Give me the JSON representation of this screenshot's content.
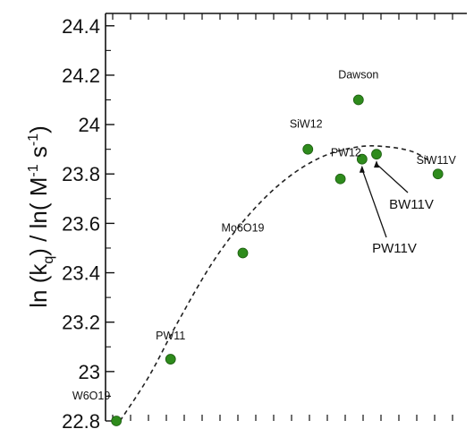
{
  "chart_data": {
    "type": "scatter",
    "title": "",
    "xlabel": "",
    "ylabel": {
      "text_parts": [
        "ln (k",
        "q",
        ") / ln( M",
        "-1",
        " s",
        "-1",
        ")"
      ]
    },
    "ylim": [
      22.8,
      24.45
    ],
    "yticks": [
      22.8,
      23,
      23.2,
      23.4,
      23.6,
      23.8,
      24,
      24.2,
      24.4
    ],
    "ytick_labels": [
      "22.8",
      "23",
      "23.2",
      "23.4",
      "23.6",
      "23.8",
      "24",
      "24.2",
      "24.4"
    ],
    "xlim": [
      0,
      1
    ],
    "grid": false,
    "marker_color": "#2e8b1c",
    "points": [
      {
        "label": "W6O19",
        "x": 0.03,
        "y": 22.8
      },
      {
        "label": "PW11",
        "x": 0.18,
        "y": 23.05
      },
      {
        "label": "Mo6O19",
        "x": 0.38,
        "y": 23.48
      },
      {
        "label": "SiW12",
        "x": 0.56,
        "y": 23.9
      },
      {
        "label": "",
        "x": 0.65,
        "y": 23.78
      },
      {
        "label": "Dawson",
        "x": 0.7,
        "y": 24.1
      },
      {
        "label": "PW12",
        "x": 0.71,
        "y": 23.86
      },
      {
        "label": "",
        "x": 0.75,
        "y": 23.88
      },
      {
        "label": "SiW11V",
        "x": 0.92,
        "y": 23.8
      }
    ],
    "callouts": [
      "BW11V",
      "PW11V"
    ],
    "trend_line": {
      "style": "dashed",
      "x": [
        0.04,
        0.12,
        0.2,
        0.3,
        0.4,
        0.5,
        0.6,
        0.7,
        0.78,
        0.85,
        0.9
      ],
      "y": [
        22.8,
        22.98,
        23.2,
        23.45,
        23.64,
        23.78,
        23.87,
        23.91,
        23.91,
        23.89,
        23.85
      ]
    }
  }
}
